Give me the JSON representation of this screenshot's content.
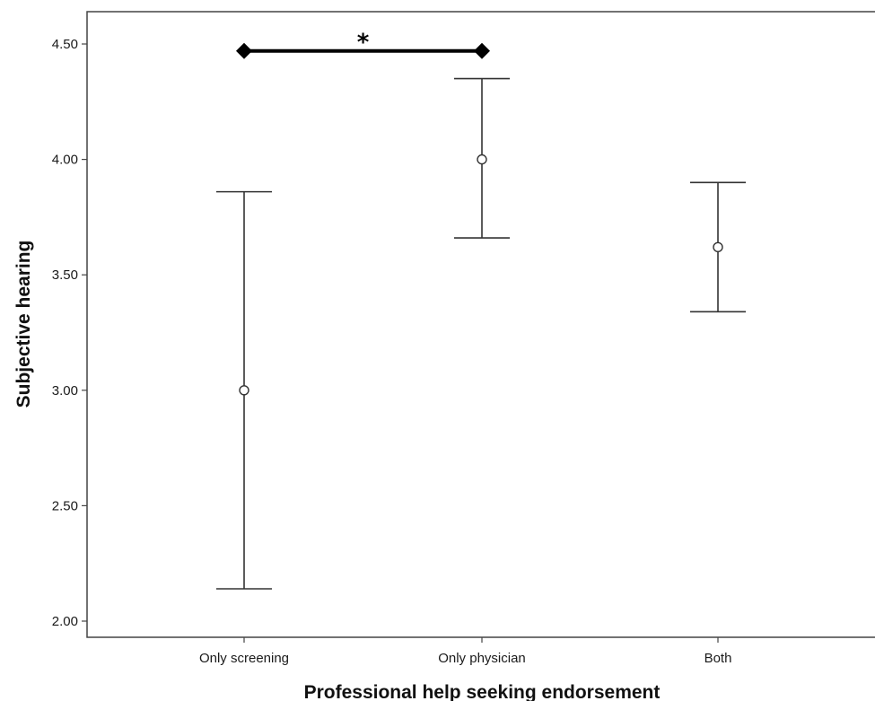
{
  "chart_data": {
    "type": "errorbar",
    "title": "",
    "xlabel": "Professional help seeking endorsement",
    "ylabel": "Subjective hearing",
    "categories": [
      "Only screening",
      "Only physician",
      "Both"
    ],
    "series": [
      {
        "values": [
          3.0,
          4.0,
          3.62
        ],
        "lower": [
          2.14,
          3.66,
          3.34
        ],
        "upper": [
          3.86,
          4.35,
          3.9
        ]
      }
    ],
    "ylim": [
      1.93,
      4.64
    ],
    "yticks": [
      "2.00",
      "2.50",
      "3.00",
      "3.50",
      "4.00",
      "4.50"
    ],
    "significance": {
      "from": "Only screening",
      "to": "Only physician",
      "y": 4.47,
      "label": "*"
    },
    "grid": false,
    "legend": "none"
  }
}
